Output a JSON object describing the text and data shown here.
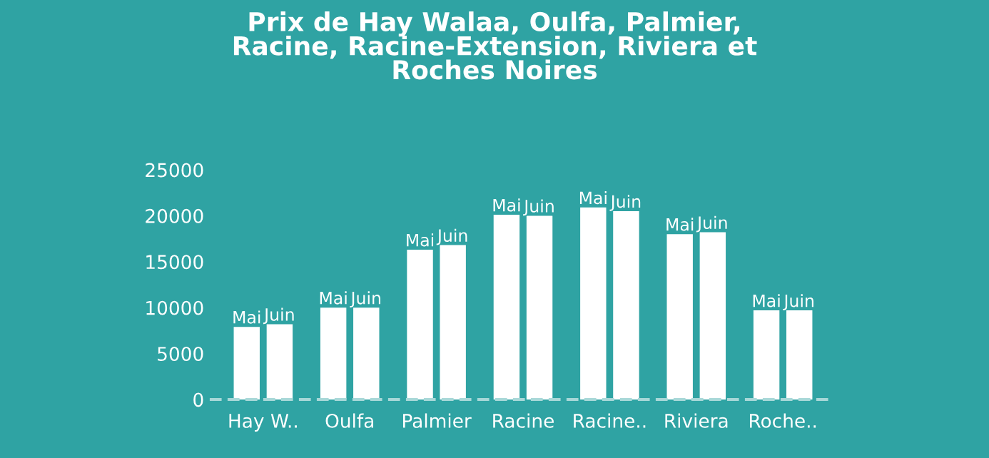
{
  "chart_data": {
    "type": "bar",
    "title": "Prix de Hay Walaa, Oulfa, Palmier,\nRacine, Racine-Extension, Riviera et\nRoches Noires",
    "categories": [
      "Hay W..",
      "Oulfa",
      "Palmier",
      "Racine",
      "Racine..",
      "Riviera",
      "Roche.."
    ],
    "series": [
      {
        "name": "Mai",
        "color": "#ffffff",
        "values": [
          7900,
          10000,
          16300,
          20100,
          20900,
          18000,
          9700
        ]
      },
      {
        "name": "Juin",
        "color": "#ffffff",
        "values": [
          8200,
          10000,
          16800,
          20000,
          20500,
          18200,
          9700
        ]
      }
    ],
    "ylim": [
      0,
      25000
    ],
    "yticks": [
      0,
      5000,
      10000,
      15000,
      20000,
      25000
    ],
    "grid": false,
    "legend": false
  }
}
